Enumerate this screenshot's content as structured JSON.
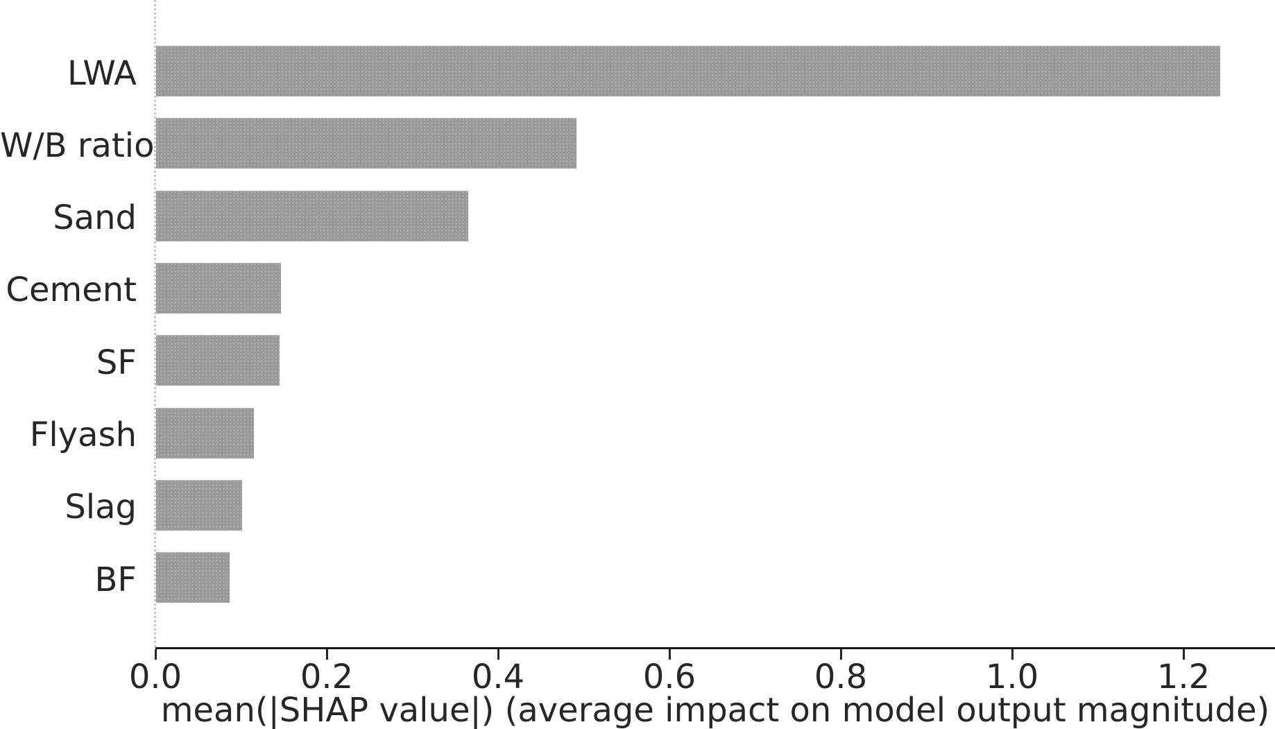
{
  "chart_data": {
    "type": "bar",
    "orientation": "horizontal",
    "title": "",
    "xlabel": "mean(|SHAP value|) (average impact on model output magnitude)",
    "ylabel": "",
    "categories": [
      "LWA",
      "W/B ratio",
      "Sand",
      "Cement",
      "SF",
      "Flyash",
      "Slag",
      "BF"
    ],
    "values": [
      1.242,
      0.491,
      0.364,
      0.146,
      0.144,
      0.114,
      0.1,
      0.086
    ],
    "x_tick_values": [
      0.0,
      0.2,
      0.4,
      0.6,
      0.8,
      1.0,
      1.2
    ],
    "x_tick_labels": [
      "0.0",
      "0.2",
      "0.4",
      "0.6",
      "0.8",
      "1.0",
      "1.2"
    ],
    "xlim": [
      0.0,
      1.307
    ],
    "grid": false,
    "legend": null,
    "bar_color": "#999999",
    "axis_color": "#161616",
    "text_color": "#262626"
  }
}
